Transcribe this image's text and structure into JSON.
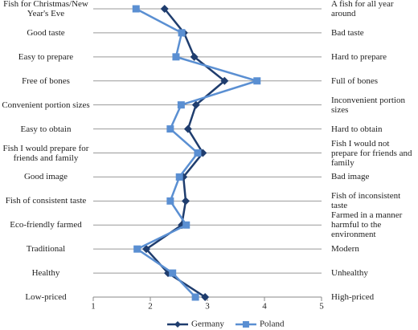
{
  "chart_data": {
    "type": "line",
    "categories": [
      "Fish for Christmas/New Year's Eve",
      "Good taste",
      "Easy to prepare",
      "Free of bones",
      "Convenient portion sizes",
      "Easy to obtain",
      "Fish I would prepare for friends and family",
      "Good image",
      "Fish of consistent taste",
      "Eco-friendly farmed",
      "Traditional",
      "Healthy",
      "Low-priced"
    ],
    "right_labels": [
      "A fish for all year around",
      "Bad taste",
      "Hard to prepare",
      "Full of bones",
      "Inconvenient portion sizes",
      "Hard to obtain",
      "Fish I would not prepare for friends and family",
      "Bad image",
      "Fish of inconsistent taste",
      "Farmed in a manner harmful to the environment",
      "Modern",
      "Unhealthy",
      "High-priced"
    ],
    "series": [
      {
        "name": "Germany",
        "color": "#1f3d6e",
        "marker": "diamond",
        "values": [
          2.25,
          2.59,
          2.77,
          3.3,
          2.8,
          2.66,
          2.92,
          2.58,
          2.62,
          2.55,
          1.93,
          2.31,
          2.96
        ]
      },
      {
        "name": "Poland",
        "color": "#5a8fd2",
        "marker": "square",
        "values": [
          1.75,
          2.55,
          2.45,
          3.87,
          2.54,
          2.35,
          2.83,
          2.51,
          2.35,
          2.63,
          1.77,
          2.39,
          2.79
        ]
      }
    ],
    "xlim": [
      1,
      5
    ],
    "xticks": [
      1,
      2,
      3,
      4,
      5
    ],
    "grid": true,
    "legend": "bottom"
  }
}
